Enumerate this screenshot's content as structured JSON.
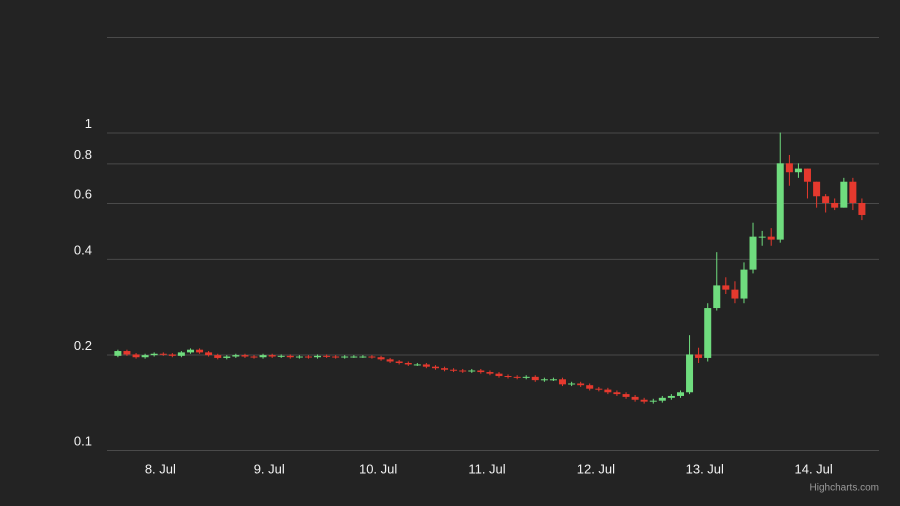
{
  "chart_data": {
    "type": "candlestick",
    "x": [
      7.61,
      7.693,
      7.777,
      7.86,
      7.943,
      8.027,
      8.11,
      8.193,
      8.277,
      8.36,
      8.443,
      8.527,
      8.61,
      8.693,
      8.777,
      8.86,
      8.943,
      9.027,
      9.11,
      9.193,
      9.277,
      9.36,
      9.443,
      9.527,
      9.61,
      9.693,
      9.777,
      9.86,
      9.943,
      10.027,
      10.11,
      10.193,
      10.277,
      10.36,
      10.443,
      10.527,
      10.61,
      10.693,
      10.777,
      10.86,
      10.943,
      11.027,
      11.11,
      11.193,
      11.277,
      11.36,
      11.443,
      11.527,
      11.61,
      11.693,
      11.777,
      11.86,
      11.943,
      12.027,
      12.11,
      12.193,
      12.277,
      12.36,
      12.443,
      12.527,
      12.61,
      12.693,
      12.777,
      12.86,
      12.943,
      13.027,
      13.11,
      13.193,
      13.277,
      13.36,
      13.443,
      13.527,
      13.61,
      13.693,
      13.777,
      13.86,
      13.943,
      14.027,
      14.11,
      14.193,
      14.277,
      14.36,
      14.443
    ],
    "open": [
      0.198,
      0.205,
      0.2,
      0.196,
      0.199,
      0.201,
      0.2,
      0.198,
      0.203,
      0.207,
      0.203,
      0.199,
      0.195,
      0.197,
      0.199,
      0.197,
      0.196,
      0.199,
      0.197,
      0.198,
      0.196,
      0.197,
      0.196,
      0.198,
      0.197,
      0.196,
      0.197,
      0.197,
      0.197,
      0.196,
      0.193,
      0.19,
      0.188,
      0.186,
      0.186,
      0.183,
      0.181,
      0.179,
      0.178,
      0.177,
      0.178,
      0.176,
      0.174,
      0.171,
      0.17,
      0.169,
      0.17,
      0.166,
      0.167,
      0.167,
      0.161,
      0.162,
      0.16,
      0.156,
      0.155,
      0.152,
      0.15,
      0.147,
      0.144,
      0.142,
      0.143,
      0.146,
      0.148,
      0.152,
      0.2,
      0.195,
      0.28,
      0.33,
      0.32,
      0.3,
      0.37,
      0.47,
      0.47,
      0.46,
      0.8,
      0.75,
      0.77,
      0.7,
      0.63,
      0.6,
      0.58,
      0.7,
      0.6
    ],
    "high": [
      0.207,
      0.207,
      0.202,
      0.201,
      0.203,
      0.203,
      0.202,
      0.205,
      0.209,
      0.209,
      0.205,
      0.201,
      0.199,
      0.201,
      0.201,
      0.199,
      0.201,
      0.201,
      0.2,
      0.2,
      0.199,
      0.199,
      0.2,
      0.2,
      0.199,
      0.199,
      0.199,
      0.199,
      0.199,
      0.198,
      0.195,
      0.192,
      0.19,
      0.188,
      0.188,
      0.185,
      0.183,
      0.181,
      0.18,
      0.18,
      0.18,
      0.178,
      0.176,
      0.173,
      0.172,
      0.172,
      0.172,
      0.169,
      0.169,
      0.169,
      0.164,
      0.164,
      0.162,
      0.158,
      0.157,
      0.154,
      0.152,
      0.149,
      0.146,
      0.145,
      0.148,
      0.15,
      0.154,
      0.23,
      0.21,
      0.29,
      0.42,
      0.35,
      0.34,
      0.39,
      0.52,
      0.49,
      0.5,
      1.0,
      0.85,
      0.8,
      0.77,
      0.7,
      0.64,
      0.62,
      0.72,
      0.72,
      0.62
    ],
    "low": [
      0.196,
      0.198,
      0.194,
      0.194,
      0.197,
      0.198,
      0.196,
      0.196,
      0.201,
      0.201,
      0.197,
      0.193,
      0.193,
      0.195,
      0.195,
      0.194,
      0.194,
      0.195,
      0.195,
      0.194,
      0.194,
      0.194,
      0.194,
      0.195,
      0.194,
      0.194,
      0.195,
      0.195,
      0.194,
      0.191,
      0.188,
      0.186,
      0.184,
      0.184,
      0.181,
      0.179,
      0.177,
      0.176,
      0.175,
      0.175,
      0.174,
      0.172,
      0.169,
      0.168,
      0.167,
      0.167,
      0.164,
      0.164,
      0.165,
      0.159,
      0.159,
      0.158,
      0.154,
      0.153,
      0.15,
      0.148,
      0.145,
      0.142,
      0.14,
      0.14,
      0.141,
      0.144,
      0.146,
      0.15,
      0.188,
      0.19,
      0.275,
      0.31,
      0.29,
      0.29,
      0.36,
      0.44,
      0.44,
      0.45,
      0.68,
      0.72,
      0.62,
      0.58,
      0.56,
      0.57,
      0.58,
      0.57,
      0.53
    ],
    "close": [
      0.205,
      0.2,
      0.196,
      0.199,
      0.201,
      0.2,
      0.198,
      0.203,
      0.207,
      0.203,
      0.199,
      0.195,
      0.197,
      0.199,
      0.197,
      0.196,
      0.199,
      0.197,
      0.198,
      0.196,
      0.197,
      0.196,
      0.198,
      0.197,
      0.196,
      0.197,
      0.197,
      0.197,
      0.196,
      0.193,
      0.19,
      0.188,
      0.186,
      0.186,
      0.183,
      0.181,
      0.179,
      0.178,
      0.177,
      0.178,
      0.176,
      0.174,
      0.171,
      0.17,
      0.169,
      0.17,
      0.166,
      0.167,
      0.167,
      0.161,
      0.162,
      0.16,
      0.156,
      0.155,
      0.152,
      0.15,
      0.147,
      0.144,
      0.142,
      0.143,
      0.146,
      0.148,
      0.152,
      0.2,
      0.195,
      0.28,
      0.33,
      0.32,
      0.3,
      0.37,
      0.47,
      0.47,
      0.46,
      0.8,
      0.75,
      0.77,
      0.7,
      0.63,
      0.6,
      0.58,
      0.7,
      0.6,
      0.55
    ],
    "up_color": "#6fdc7e",
    "down_color": "#e5392e",
    "xlim": [
      7.51,
      14.6
    ],
    "xticks": [
      {
        "value": 8,
        "label": "8. Jul"
      },
      {
        "value": 9,
        "label": "9. Jul"
      },
      {
        "value": 10,
        "label": "10. Jul"
      },
      {
        "value": 11,
        "label": "11. Jul"
      },
      {
        "value": 12,
        "label": "12. Jul"
      },
      {
        "value": 13,
        "label": "13. Jul"
      },
      {
        "value": 14,
        "label": "14. Jul"
      }
    ],
    "ylim": [
      0.1,
      2
    ],
    "log_y": true,
    "yticks": [
      0.1,
      0.2,
      0.4,
      0.6,
      0.8,
      1
    ],
    "grid": true,
    "credits": "Highcharts.com"
  }
}
